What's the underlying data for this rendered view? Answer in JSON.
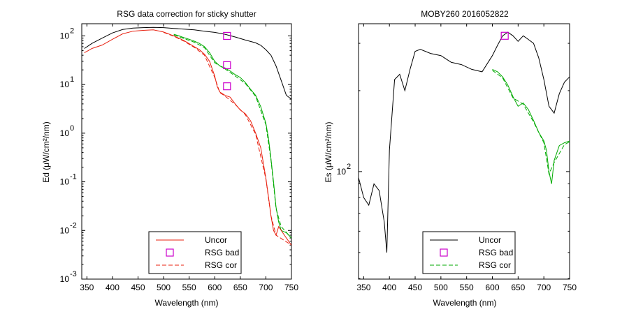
{
  "chart_data": [
    {
      "type": "line",
      "title": "RSG data correction for sticky shutter",
      "xlabel": "Wavelength (nm)",
      "ylabel": "Ed (μW/cm²/nm)",
      "xlim": [
        340,
        750
      ],
      "ylim_log10": [
        -3,
        2.25
      ],
      "y_scale": "log",
      "x_ticks": [
        350,
        400,
        450,
        500,
        550,
        600,
        650,
        700,
        750
      ],
      "y_ticks": [
        {
          "base": "10",
          "exp": "2",
          "value": 100
        },
        {
          "base": "10",
          "exp": "1",
          "value": 10
        },
        {
          "base": "10",
          "exp": "0",
          "value": 1
        },
        {
          "base": "10",
          "exp": "-1",
          "value": 0.1
        },
        {
          "base": "10",
          "exp": "-2",
          "value": 0.01
        },
        {
          "base": "10",
          "exp": "-3",
          "value": 0.001
        }
      ],
      "grid": false,
      "legend_position": "bottom-center",
      "legend": [
        {
          "label": "Uncor",
          "style": "solid",
          "color": "#e8200f"
        },
        {
          "label": "RSG bad",
          "style": "marker",
          "color": "#cc00cc"
        },
        {
          "label": "RSG cor",
          "style": "dashed",
          "color": "#e8200f"
        }
      ],
      "series": [
        {
          "color": "#000000",
          "style": "solid",
          "x": [
            345,
            360,
            380,
            400,
            420,
            440,
            460,
            480,
            500,
            520,
            540,
            560,
            580,
            600,
            620,
            640,
            660,
            680,
            690,
            700,
            710,
            720,
            730,
            740,
            750
          ],
          "y": [
            55,
            70,
            90,
            115,
            135,
            145,
            148,
            150,
            148,
            142,
            138,
            133,
            125,
            118,
            108,
            95,
            82,
            72,
            64,
            52,
            40,
            24,
            12,
            6,
            5
          ]
        },
        {
          "color": "#00aa00",
          "style": "solid",
          "x": [
            520,
            530,
            540,
            550,
            560,
            570,
            580,
            590,
            600,
            610,
            620,
            630,
            640,
            650,
            660,
            670,
            680,
            690,
            700,
            705,
            710,
            715,
            720,
            725,
            730,
            740,
            750
          ],
          "y": [
            108,
            100,
            92,
            85,
            78,
            70,
            60,
            45,
            30,
            24,
            22,
            19,
            16,
            14,
            11,
            8,
            6,
            3.5,
            1.6,
            0.8,
            0.3,
            0.1,
            0.03,
            0.015,
            0.01,
            0.009,
            0.007
          ]
        },
        {
          "color": "#00aa00",
          "style": "dashed",
          "x": [
            520,
            540,
            560,
            580,
            600,
            620,
            640,
            660,
            680,
            700,
            710,
            720,
            730,
            750
          ],
          "y": [
            104,
            88,
            74,
            57,
            28,
            21,
            15,
            10.5,
            5.7,
            1.5,
            0.28,
            0.028,
            0.012,
            0.007
          ]
        },
        {
          "color": "#e8200f",
          "style": "solid",
          "x": [
            345,
            360,
            380,
            400,
            420,
            440,
            460,
            480,
            500,
            520,
            540,
            560,
            570,
            580,
            590,
            600,
            605,
            610,
            620,
            630,
            640,
            650,
            660,
            670,
            680,
            690,
            700,
            705,
            710,
            715,
            720,
            725,
            730,
            740,
            750
          ],
          "y": [
            45,
            55,
            65,
            85,
            110,
            125,
            130,
            133,
            120,
            100,
            80,
            60,
            52,
            42,
            30,
            15,
            9,
            7,
            6,
            5.5,
            4,
            3,
            2.5,
            1.8,
            1,
            0.5,
            0.12,
            0.05,
            0.02,
            0.01,
            0.008,
            0.012,
            0.01,
            0.007,
            0.005
          ]
        },
        {
          "color": "#e8200f",
          "style": "dashed",
          "x": [
            500,
            520,
            540,
            560,
            580,
            600,
            610,
            620,
            640,
            660,
            680,
            700,
            710,
            720,
            750
          ],
          "y": [
            118,
            98,
            78,
            58,
            40,
            14,
            6.8,
            5.8,
            3.9,
            2.4,
            0.95,
            0.115,
            0.02,
            0.008,
            0.005
          ]
        }
      ],
      "markers": {
        "label": "RSG bad",
        "color": "#cc00cc",
        "shape": "square",
        "x": [
          624,
          624,
          624
        ],
        "y": [
          100,
          25,
          9.2
        ]
      }
    },
    {
      "type": "line",
      "title": "MOBY260  2016052822",
      "xlabel": "Wavelength (nm)",
      "ylabel": "Es (μW/cm²/nm)",
      "xlim": [
        340,
        750
      ],
      "ylim_log10": [
        1.6,
        2.55
      ],
      "y_scale": "log",
      "x_ticks": [
        350,
        400,
        450,
        500,
        550,
        600,
        650,
        700,
        750
      ],
      "y_ticks": [
        {
          "base": "10",
          "exp": "2",
          "value": 100
        }
      ],
      "grid": false,
      "legend_position": "bottom-center",
      "legend": [
        {
          "label": "Uncor",
          "style": "solid",
          "color": "#000000"
        },
        {
          "label": "RSG bad",
          "style": "marker",
          "color": "#cc00cc"
        },
        {
          "label": "RSG cor",
          "style": "dashed",
          "color": "#00aa00"
        }
      ],
      "series": [
        {
          "color": "#000000",
          "style": "solid",
          "x": [
            340,
            350,
            360,
            370,
            380,
            390,
            395,
            400,
            410,
            420,
            430,
            440,
            450,
            460,
            480,
            500,
            520,
            540,
            560,
            580,
            600,
            610,
            620,
            630,
            640,
            650,
            660,
            670,
            680,
            690,
            700,
            710,
            720,
            730,
            740,
            750
          ],
          "y": [
            95,
            80,
            75,
            90,
            85,
            65,
            50,
            120,
            220,
            230,
            200,
            240,
            280,
            285,
            275,
            270,
            255,
            250,
            240,
            235,
            270,
            295,
            320,
            330,
            320,
            305,
            320,
            310,
            300,
            265,
            220,
            175,
            165,
            195,
            215,
            225
          ]
        },
        {
          "color": "#00aa00",
          "style": "solid",
          "x": [
            600,
            610,
            620,
            630,
            640,
            650,
            660,
            670,
            680,
            690,
            700,
            705,
            710,
            715,
            720,
            730,
            740,
            750
          ],
          "y": [
            240,
            235,
            225,
            210,
            190,
            175,
            180,
            170,
            155,
            140,
            130,
            120,
            100,
            90,
            110,
            125,
            128,
            130
          ]
        },
        {
          "color": "#00aa00",
          "style": "dashed",
          "x": [
            600,
            620,
            640,
            660,
            680,
            700,
            710,
            720,
            740,
            750
          ],
          "y": [
            238,
            223,
            188,
            178,
            153,
            128,
            98,
            108,
            126,
            129
          ]
        }
      ],
      "markers": {
        "label": "RSG bad",
        "color": "#cc00cc",
        "shape": "square",
        "x": [
          624
        ],
        "y": [
          320
        ]
      }
    }
  ]
}
